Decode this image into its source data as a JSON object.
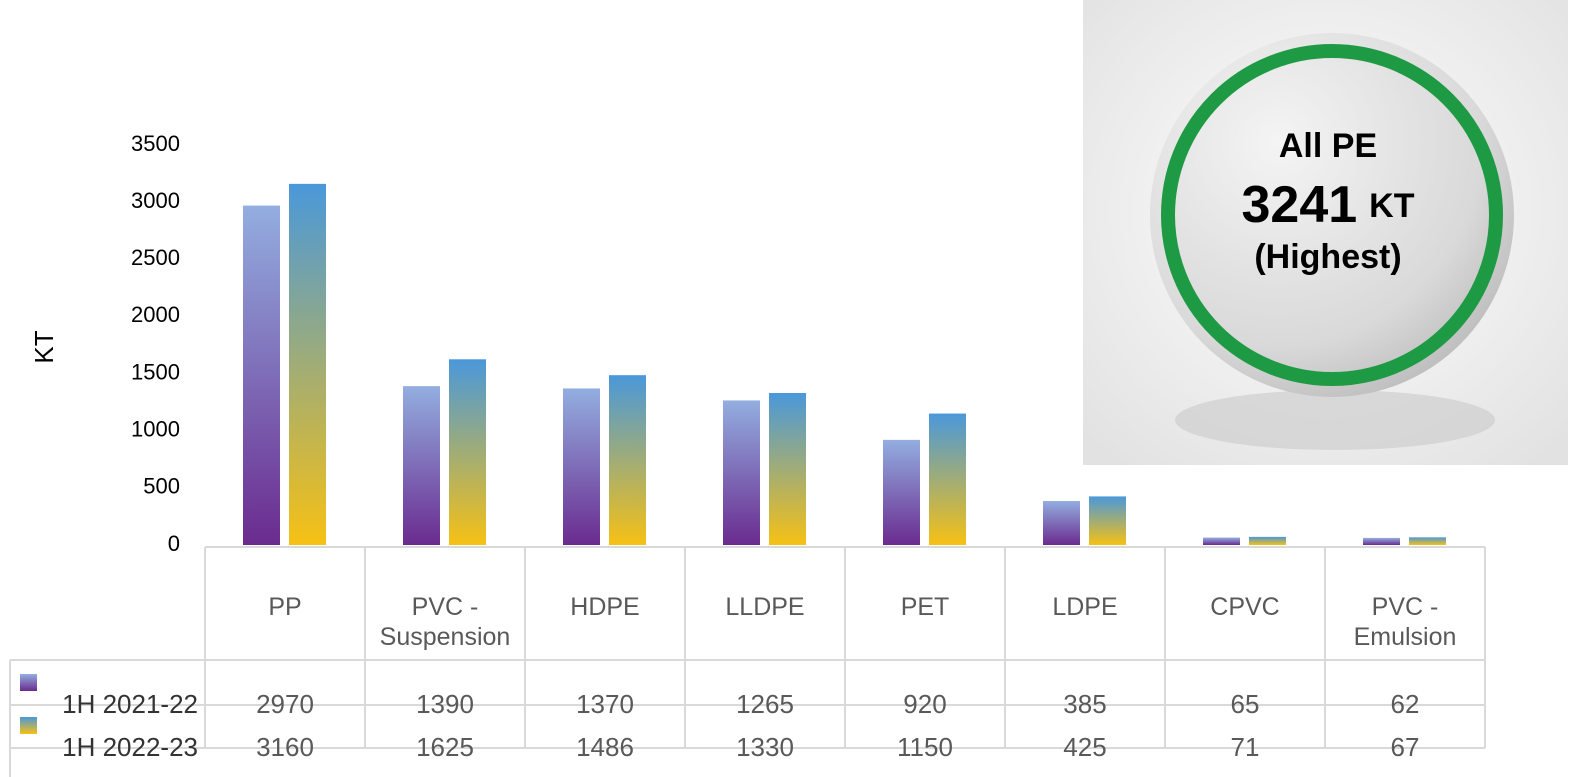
{
  "chart_data": {
    "type": "bar",
    "y_label": "KT",
    "categories": [
      "PP",
      "PVC - Suspension",
      "HDPE",
      "LLDPE",
      "PET",
      "LDPE",
      "CPVC",
      "PVC - Emulsion"
    ],
    "series": [
      {
        "name": "1H 2021-22",
        "gradient": [
          "#93aee0",
          "#6a2b8f"
        ],
        "values": [
          2970,
          1390,
          1370,
          1265,
          920,
          385,
          65,
          62
        ]
      },
      {
        "name": "1H 2022-23",
        "gradient": [
          "#4a98da",
          "#f6c114"
        ],
        "values": [
          3160,
          1625,
          1486,
          1330,
          1150,
          425,
          71,
          67
        ]
      }
    ],
    "ylim": [
      0,
      3500
    ],
    "yticks": [
      0,
      500,
      1000,
      1500,
      2000,
      2500,
      3000,
      3500
    ],
    "data_table": true,
    "badge": {
      "title": "All PE",
      "value": 3241,
      "unit": "KT",
      "note": "(Highest)"
    }
  }
}
